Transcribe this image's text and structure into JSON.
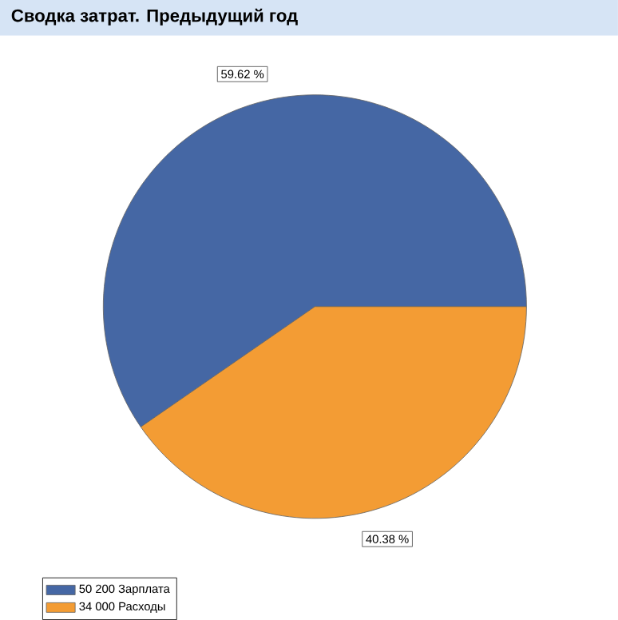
{
  "chart_data": {
    "type": "pie",
    "title": "Сводка затрат. Предыдущий год",
    "categories": [
      "50 200 Зарплата",
      "34 000 Расходы"
    ],
    "values": [
      59.62,
      40.38
    ],
    "colors": [
      "#4567a4",
      "#f39c34"
    ],
    "value_labels": [
      "59.62 %",
      "40.38 %"
    ],
    "legend": "bottom left"
  }
}
